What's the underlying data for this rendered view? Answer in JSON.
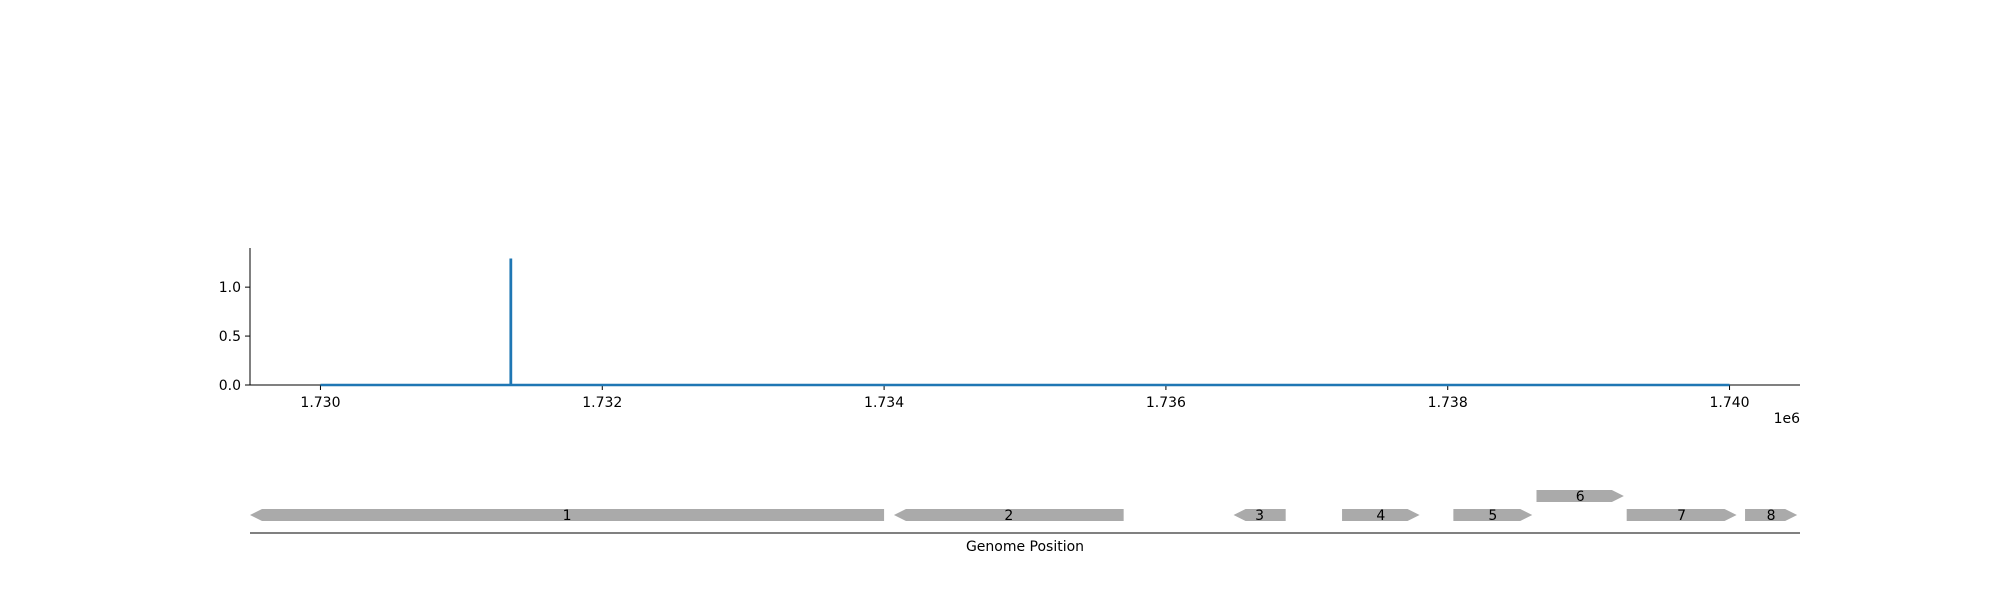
{
  "chart_data": [
    {
      "type": "line",
      "title": "",
      "xlabel": "",
      "ylabel": "",
      "x_offset_label": "1e6",
      "xlim": [
        1729500,
        1740500
      ],
      "ylim": [
        0,
        1.4
      ],
      "grid": false,
      "x_ticks": [
        1730000,
        1732000,
        1734000,
        1736000,
        1738000,
        1740000
      ],
      "x_tick_labels": [
        "1.730",
        "1.732",
        "1.734",
        "1.736",
        "1.738",
        "1.740"
      ],
      "y_ticks": [
        0,
        0.5,
        1.0
      ],
      "y_tick_labels": [
        "0.0",
        "0.5",
        "1.0"
      ],
      "series": [
        {
          "color": "#1f77b4",
          "x": [
            1730000,
            1731350,
            1731350,
            1731352,
            1731352,
            1740000
          ],
          "y": [
            0,
            0,
            1.28,
            1.28,
            0,
            0
          ]
        }
      ]
    },
    {
      "type": "gene-track",
      "xlabel": "Genome Position",
      "xlim": [
        1729500,
        1740500
      ],
      "feature_color": "#aaaaaa",
      "features": [
        {
          "label": "1",
          "start": 1729500,
          "end": 1734000,
          "strand": -1,
          "row": 0
        },
        {
          "label": "2",
          "start": 1734070,
          "end": 1735700,
          "strand": -1,
          "row": 0
        },
        {
          "label": "3",
          "start": 1736480,
          "end": 1736850,
          "strand": -1,
          "row": 0
        },
        {
          "label": "4",
          "start": 1737250,
          "end": 1737800,
          "strand": 1,
          "row": 0
        },
        {
          "label": "5",
          "start": 1738040,
          "end": 1738600,
          "strand": 1,
          "row": 0
        },
        {
          "label": "6",
          "start": 1738630,
          "end": 1739250,
          "strand": 1,
          "row": 1
        },
        {
          "label": "7",
          "start": 1739270,
          "end": 1740050,
          "strand": 1,
          "row": 0
        },
        {
          "label": "8",
          "start": 1740110,
          "end": 1740480,
          "strand": 1,
          "row": 0
        }
      ]
    }
  ]
}
